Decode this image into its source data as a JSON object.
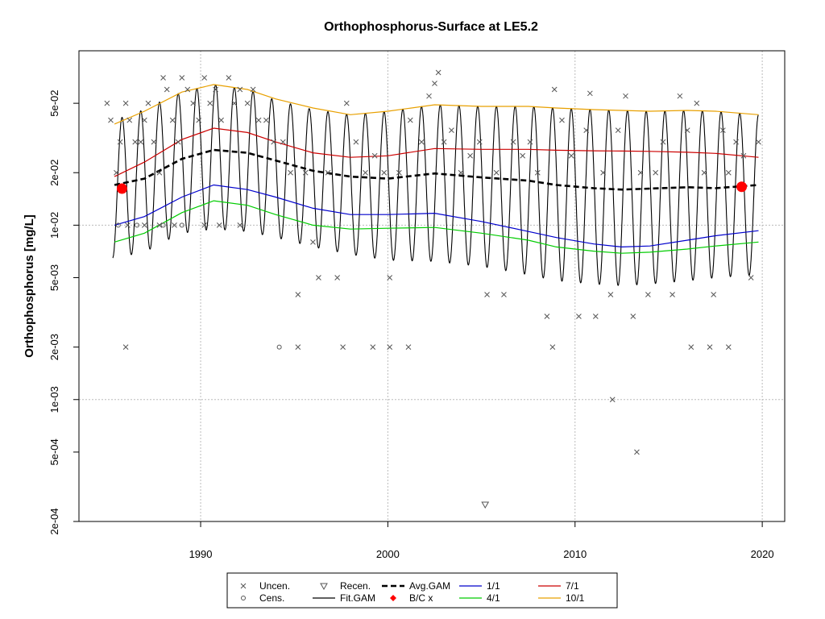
{
  "chart_data": {
    "type": "line",
    "title": "Orthophosphorus-Surface at LE5.2",
    "ylabel": "Orthophosphorus [mg/L]",
    "xlabel": "",
    "y_scale": "log",
    "xlim": [
      1983.5,
      2021.2
    ],
    "ylim": [
      0.0002,
      0.1
    ],
    "x_ticks": [
      1990,
      2000,
      2010,
      2020
    ],
    "x_tick_labels": [
      "1990",
      "2000",
      "2010",
      "2020"
    ],
    "y_ticks": [
      0.0002,
      0.0005,
      0.001,
      0.002,
      0.005,
      0.01,
      0.02,
      0.05
    ],
    "y_tick_labels": [
      "2e-04",
      "5e-04",
      "1e-03",
      "2e-03",
      "5e-03",
      "1e-02",
      "2e-02",
      "5e-02"
    ],
    "grid": "dotted gray at 1990, 2000, 2010, 2020 and at 1e-03, 1e-02",
    "legend_position": "bottom-center",
    "colors": {
      "uncen": "#555555",
      "fit_gam": "#000000",
      "avg_gam": "#000000",
      "bc": "#ff0000",
      "d1_1": "#0000cc",
      "d4_1": "#00cc00",
      "d7_1": "#cc0000",
      "d10_1": "#e8a000"
    },
    "legend": [
      {
        "key": "uncen",
        "label": "Uncen.",
        "symbol": "x"
      },
      {
        "key": "recen",
        "label": "Recen.",
        "symbol": "triangle-down"
      },
      {
        "key": "avg_gam",
        "label": "Avg.GAM",
        "symbol": "dashed-line"
      },
      {
        "key": "d1_1",
        "label": "1/1",
        "symbol": "line"
      },
      {
        "key": "d7_1",
        "label": "7/1",
        "symbol": "line"
      },
      {
        "key": "cens",
        "label": "Cens.",
        "symbol": "circle"
      },
      {
        "key": "fit_gam",
        "label": "Fit.GAM",
        "symbol": "line"
      },
      {
        "key": "bc",
        "label": "B/C x",
        "symbol": "diamond"
      },
      {
        "key": "d4_1",
        "label": "4/1",
        "symbol": "line"
      },
      {
        "key": "d10_1",
        "label": "10/1",
        "symbol": "line"
      }
    ],
    "series": [
      {
        "name": "Avg.GAM",
        "x": [
          1985.4,
          1987,
          1989,
          1990.7,
          1992.5,
          1994,
          1996,
          1998,
          2000,
          2002.5,
          2005,
          2007.5,
          2009,
          2011,
          2012.5,
          2014,
          2016,
          2017.5,
          2019.8
        ],
        "y": [
          0.017,
          0.0185,
          0.024,
          0.027,
          0.026,
          0.0235,
          0.0205,
          0.019,
          0.0185,
          0.0198,
          0.0188,
          0.018,
          0.017,
          0.0163,
          0.016,
          0.0162,
          0.0165,
          0.0163,
          0.017
        ]
      },
      {
        "name": "1/1",
        "x": [
          1985.4,
          1987,
          1989,
          1990.7,
          1992.5,
          1994,
          1996,
          1998,
          2000,
          2002.5,
          2005,
          2007.5,
          2009,
          2011,
          2012.5,
          2014,
          2016,
          2017.5,
          2019.8
        ],
        "y": [
          0.01,
          0.0112,
          0.0145,
          0.017,
          0.016,
          0.0145,
          0.0125,
          0.0115,
          0.0115,
          0.0117,
          0.0105,
          0.0092,
          0.0085,
          0.0078,
          0.0075,
          0.0076,
          0.0082,
          0.0087,
          0.0093
        ]
      },
      {
        "name": "4/1",
        "x": [
          1985.4,
          1987,
          1989,
          1990.7,
          1992.5,
          1994,
          1996,
          1998,
          2000,
          2002.5,
          2005,
          2007.5,
          2009,
          2011,
          2012.5,
          2014,
          2016,
          2017.5,
          2019.8
        ],
        "y": [
          0.008,
          0.009,
          0.0118,
          0.0138,
          0.013,
          0.0115,
          0.01,
          0.0095,
          0.0096,
          0.0097,
          0.009,
          0.0082,
          0.0075,
          0.0071,
          0.0069,
          0.007,
          0.0073,
          0.0076,
          0.008
        ]
      },
      {
        "name": "7/1",
        "x": [
          1985.4,
          1987,
          1989,
          1990.7,
          1992.5,
          1994,
          1996,
          1998,
          2000,
          2002.5,
          2005,
          2007.5,
          2009,
          2011,
          2012.5,
          2014,
          2016,
          2017.5,
          2019.8
        ],
        "y": [
          0.019,
          0.023,
          0.031,
          0.036,
          0.034,
          0.03,
          0.026,
          0.0245,
          0.025,
          0.0275,
          0.0272,
          0.0272,
          0.0269,
          0.0267,
          0.0266,
          0.0265,
          0.0262,
          0.0258,
          0.0245
        ]
      },
      {
        "name": "10/1",
        "x": [
          1985.4,
          1987,
          1989,
          1990.7,
          1992.5,
          1994,
          1996,
          1998,
          2000,
          2002.5,
          2005,
          2007.5,
          2009,
          2011,
          2012.5,
          2014,
          2016,
          2017.5,
          2019.8
        ],
        "y": [
          0.038,
          0.045,
          0.058,
          0.064,
          0.06,
          0.053,
          0.047,
          0.043,
          0.045,
          0.049,
          0.048,
          0.048,
          0.047,
          0.046,
          0.0455,
          0.045,
          0.0455,
          0.045,
          0.043
        ]
      },
      {
        "name": "Fit.GAM",
        "x_start": 1985.3,
        "x_end": 2019.8,
        "seasonal_cycle_years": 1,
        "y_upper_envelope": [
          0.04,
          0.046,
          0.058,
          0.064,
          0.06,
          0.052,
          0.046,
          0.043,
          0.045,
          0.049,
          0.048,
          0.048,
          0.047,
          0.046,
          0.0455,
          0.045,
          0.0455,
          0.045,
          0.043
        ],
        "y_lower_envelope": [
          0.0065,
          0.007,
          0.009,
          0.0095,
          0.0092,
          0.0085,
          0.0075,
          0.0068,
          0.0063,
          0.0062,
          0.0058,
          0.0052,
          0.0048,
          0.0046,
          0.0045,
          0.0046,
          0.0048,
          0.005,
          0.0052
        ]
      },
      {
        "name": "B/C x",
        "x": [
          1985.8,
          2018.9
        ],
        "y": [
          0.0162,
          0.0166
        ]
      },
      {
        "name": "Uncen.",
        "points": [
          [
            1985.0,
            0.05
          ],
          [
            1985.2,
            0.04
          ],
          [
            1985.5,
            0.02
          ],
          [
            1985.7,
            0.03
          ],
          [
            1986.0,
            0.05
          ],
          [
            1986.2,
            0.04
          ],
          [
            1986.5,
            0.03
          ],
          [
            1986.8,
            0.03
          ],
          [
            1987.0,
            0.04
          ],
          [
            1987.2,
            0.05
          ],
          [
            1987.5,
            0.03
          ],
          [
            1987.8,
            0.02
          ],
          [
            1988.0,
            0.07
          ],
          [
            1988.2,
            0.06
          ],
          [
            1988.5,
            0.04
          ],
          [
            1988.8,
            0.03
          ],
          [
            1989.0,
            0.07
          ],
          [
            1989.3,
            0.06
          ],
          [
            1989.6,
            0.05
          ],
          [
            1989.9,
            0.04
          ],
          [
            1990.2,
            0.07
          ],
          [
            1990.5,
            0.05
          ],
          [
            1990.8,
            0.06
          ],
          [
            1991.1,
            0.04
          ],
          [
            1991.5,
            0.07
          ],
          [
            1991.8,
            0.05
          ],
          [
            1992.1,
            0.06
          ],
          [
            1992.5,
            0.05
          ],
          [
            1992.8,
            0.06
          ],
          [
            1993.1,
            0.04
          ],
          [
            1993.5,
            0.04
          ],
          [
            1993.9,
            0.03
          ],
          [
            1994.4,
            0.03
          ],
          [
            1994.8,
            0.02
          ],
          [
            1995.2,
            0.004
          ],
          [
            1995.6,
            0.02
          ],
          [
            1996.0,
            0.008
          ],
          [
            1996.3,
            0.005
          ],
          [
            1996.8,
            0.02
          ],
          [
            1997.3,
            0.005
          ],
          [
            1997.8,
            0.05
          ],
          [
            1998.3,
            0.03
          ],
          [
            1998.8,
            0.02
          ],
          [
            1999.3,
            0.025
          ],
          [
            1999.8,
            0.02
          ],
          [
            2000.1,
            0.005
          ],
          [
            2000.6,
            0.02
          ],
          [
            2001.2,
            0.04
          ],
          [
            2001.8,
            0.03
          ],
          [
            2002.2,
            0.055
          ],
          [
            2002.5,
            0.065
          ],
          [
            2002.7,
            0.075
          ],
          [
            2003.0,
            0.03
          ],
          [
            2003.4,
            0.035
          ],
          [
            2003.9,
            0.02
          ],
          [
            2004.4,
            0.025
          ],
          [
            2004.9,
            0.03
          ],
          [
            2005.3,
            0.004
          ],
          [
            2005.8,
            0.02
          ],
          [
            2006.2,
            0.004
          ],
          [
            2006.7,
            0.03
          ],
          [
            2007.2,
            0.025
          ],
          [
            2007.6,
            0.03
          ],
          [
            2008.0,
            0.02
          ],
          [
            2008.5,
            0.003
          ],
          [
            2008.9,
            0.06
          ],
          [
            2009.3,
            0.04
          ],
          [
            2009.8,
            0.025
          ],
          [
            2010.2,
            0.003
          ],
          [
            2010.6,
            0.035
          ],
          [
            2010.8,
            0.057
          ],
          [
            2011.1,
            0.003
          ],
          [
            2011.5,
            0.02
          ],
          [
            2011.9,
            0.004
          ],
          [
            2012.3,
            0.035
          ],
          [
            2012.7,
            0.055
          ],
          [
            2013.1,
            0.003
          ],
          [
            2013.5,
            0.02
          ],
          [
            2013.9,
            0.004
          ],
          [
            2014.3,
            0.02
          ],
          [
            2014.7,
            0.03
          ],
          [
            2015.2,
            0.004
          ],
          [
            2015.6,
            0.055
          ],
          [
            2016.0,
            0.035
          ],
          [
            2016.5,
            0.05
          ],
          [
            2016.9,
            0.02
          ],
          [
            2017.4,
            0.004
          ],
          [
            2017.9,
            0.035
          ],
          [
            2018.2,
            0.02
          ],
          [
            2018.6,
            0.03
          ],
          [
            2019.0,
            0.025
          ],
          [
            2019.4,
            0.005
          ],
          [
            2019.8,
            0.03
          ],
          [
            1986.0,
            0.002
          ],
          [
            1995.2,
            0.002
          ],
          [
            1997.6,
            0.002
          ],
          [
            1999.2,
            0.002
          ],
          [
            2000.1,
            0.002
          ],
          [
            2001.1,
            0.002
          ],
          [
            2008.8,
            0.002
          ],
          [
            2016.2,
            0.002
          ],
          [
            2017.2,
            0.002
          ],
          [
            2018.2,
            0.002
          ],
          [
            2012.0,
            0.001
          ],
          [
            2013.3,
            0.0005
          ],
          [
            1986.1,
            0.01
          ],
          [
            1987.0,
            0.01
          ],
          [
            1987.8,
            0.01
          ],
          [
            1988.6,
            0.01
          ],
          [
            1990.2,
            0.01
          ],
          [
            1991.0,
            0.01
          ],
          [
            1992.1,
            0.01
          ]
        ]
      },
      {
        "name": "Cens.",
        "points": [
          [
            1994.2,
            0.002
          ],
          [
            1985.6,
            0.01
          ],
          [
            1986.6,
            0.01
          ],
          [
            1988.0,
            0.01
          ],
          [
            1989.0,
            0.01
          ]
        ]
      },
      {
        "name": "Recen.",
        "points": [
          [
            2005.2,
            0.00025
          ]
        ]
      }
    ]
  }
}
